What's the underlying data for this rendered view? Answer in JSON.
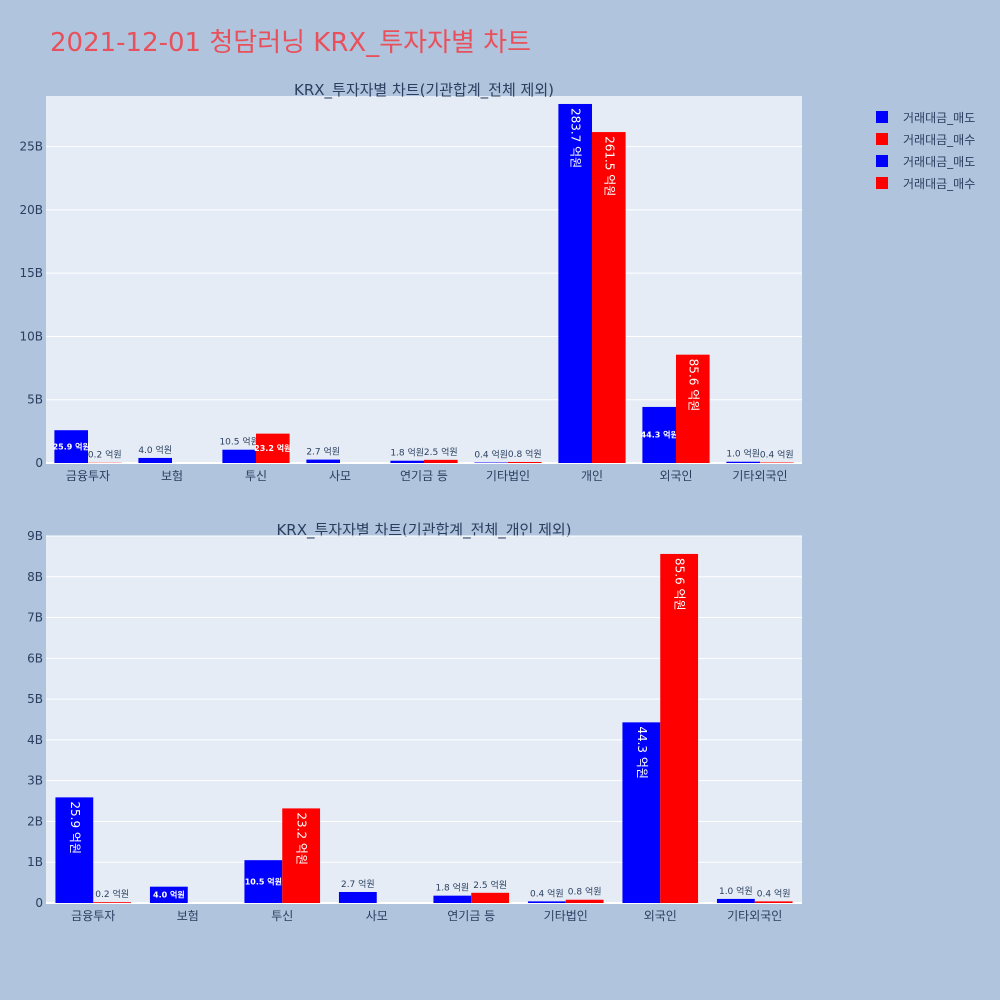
{
  "page_title": "2021-12-01 청담러닝 KRX_투자자별 차트",
  "colors": {
    "sell": "#0000ff",
    "buy": "#ff0000",
    "plot_bg": "#e5ecf6",
    "page_bg": "#b0c4de"
  },
  "legend": [
    {
      "label": "거래대금_매도",
      "color": "#0000ff"
    },
    {
      "label": "거래대금_매수",
      "color": "#ff0000"
    },
    {
      "label": "거래대금_매도",
      "color": "#0000ff"
    },
    {
      "label": "거래대금_매수",
      "color": "#ff0000"
    }
  ],
  "chart_data": [
    {
      "type": "bar",
      "title": "KRX_투자자별 차트(기관합계_전체 제외)",
      "categories": [
        "금융투자",
        "보험",
        "투신",
        "사모",
        "연기금 등",
        "기타법인",
        "개인",
        "외국인",
        "기타외국인"
      ],
      "ylim": [
        0,
        29
      ],
      "yticks": [
        0,
        5,
        10,
        15,
        20,
        25
      ],
      "ytick_labels": [
        "0",
        "5B",
        "10B",
        "15B",
        "20B",
        "25B"
      ],
      "legend_position": "top-right",
      "series": [
        {
          "name": "거래대금_매도",
          "color": "#0000ff",
          "values": [
            2.59,
            0.4,
            1.05,
            0.27,
            0.18,
            0.04,
            28.37,
            4.43,
            0.1
          ],
          "labels": [
            "25.9 억원",
            "4.0 억원",
            "10.5 억원",
            "2.7 억원",
            "1.8 억원",
            "0.4 억원",
            "283.7 억원",
            "44.3 억원",
            "1.0 억원"
          ]
        },
        {
          "name": "거래대금_매수",
          "color": "#ff0000",
          "values": [
            0.02,
            0,
            2.32,
            0,
            0.25,
            0.08,
            26.15,
            8.56,
            0.04
          ],
          "labels": [
            "0.2 억원",
            "",
            "23.2 억원",
            "",
            "2.5 억원",
            "0.8 억원",
            "261.5 억원",
            "85.6 억원",
            "0.4 억원"
          ]
        }
      ]
    },
    {
      "type": "bar",
      "title": "KRX_투자자별 차트(기관합계_전체_개인 제외)",
      "categories": [
        "금융투자",
        "보험",
        "투신",
        "사모",
        "연기금 등",
        "기타법인",
        "외국인",
        "기타외국인"
      ],
      "ylim": [
        0,
        9
      ],
      "yticks": [
        0,
        1,
        2,
        3,
        4,
        5,
        6,
        7,
        8,
        9
      ],
      "ytick_labels": [
        "0",
        "1B",
        "2B",
        "3B",
        "4B",
        "5B",
        "6B",
        "7B",
        "8B",
        "9B"
      ],
      "series": [
        {
          "name": "거래대금_매도",
          "color": "#0000ff",
          "values": [
            2.59,
            0.4,
            1.05,
            0.27,
            0.18,
            0.04,
            4.43,
            0.1
          ],
          "labels": [
            "25.9 억원",
            "4.0 억원",
            "10.5 억원",
            "2.7 억원",
            "1.8 억원",
            "0.4 억원",
            "44.3 억원",
            "1.0 억원"
          ]
        },
        {
          "name": "거래대금_매수",
          "color": "#ff0000",
          "values": [
            0.02,
            0,
            2.32,
            0,
            0.25,
            0.08,
            8.56,
            0.04
          ],
          "labels": [
            "0.2 억원",
            "",
            "23.2 억원",
            "",
            "2.5 억원",
            "0.8 억원",
            "85.6 억원",
            "0.4 억원"
          ]
        }
      ]
    }
  ]
}
